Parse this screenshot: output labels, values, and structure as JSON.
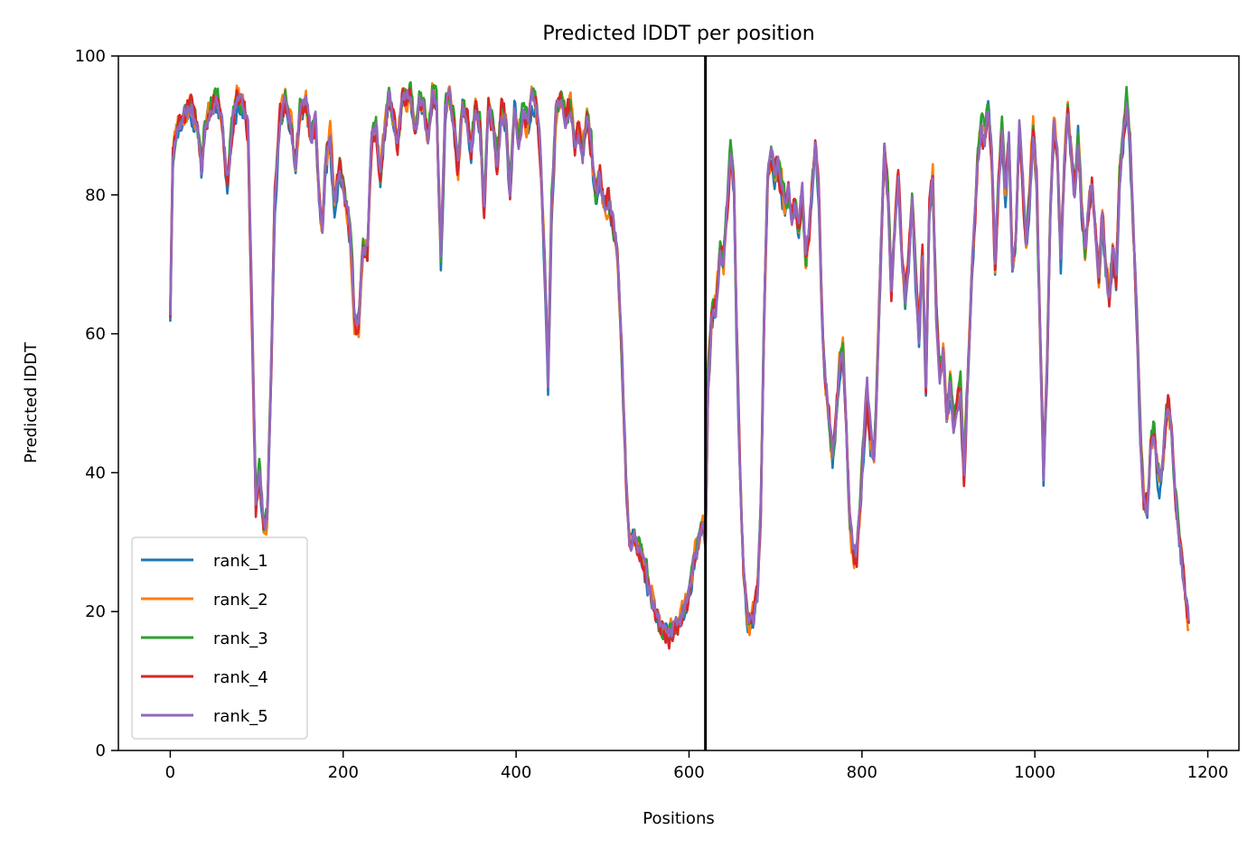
{
  "chart_data": {
    "type": "line",
    "title": "Predicted lDDT per position",
    "xlabel": "Positions",
    "ylabel": "Predicted lDDT",
    "xlim": [
      -60,
      1236
    ],
    "ylim": [
      0,
      100
    ],
    "xticks": [
      0,
      200,
      400,
      600,
      800,
      1000,
      1200
    ],
    "yticks": [
      0,
      20,
      40,
      60,
      80,
      100
    ],
    "grid": false,
    "legend_position": "lower-left",
    "vline_x": 619,
    "base_profile": [
      [
        0,
        63
      ],
      [
        3,
        86
      ],
      [
        8,
        90
      ],
      [
        15,
        91
      ],
      [
        22,
        93
      ],
      [
        28,
        91
      ],
      [
        33,
        88
      ],
      [
        36,
        84
      ],
      [
        40,
        90
      ],
      [
        48,
        93
      ],
      [
        55,
        94
      ],
      [
        60,
        91
      ],
      [
        66,
        82
      ],
      [
        72,
        90
      ],
      [
        78,
        94
      ],
      [
        85,
        92
      ],
      [
        90,
        89
      ],
      [
        95,
        60
      ],
      [
        99,
        35
      ],
      [
        103,
        40
      ],
      [
        108,
        32
      ],
      [
        112,
        33
      ],
      [
        116,
        50
      ],
      [
        121,
        80
      ],
      [
        127,
        91
      ],
      [
        133,
        93
      ],
      [
        140,
        90
      ],
      [
        145,
        84
      ],
      [
        150,
        92
      ],
      [
        157,
        93
      ],
      [
        163,
        88
      ],
      [
        168,
        90
      ],
      [
        172,
        80
      ],
      [
        176,
        75
      ],
      [
        180,
        85
      ],
      [
        185,
        88
      ],
      [
        190,
        79
      ],
      [
        196,
        84
      ],
      [
        202,
        80
      ],
      [
        208,
        75
      ],
      [
        213,
        62
      ],
      [
        218,
        61
      ],
      [
        223,
        73
      ],
      [
        228,
        72
      ],
      [
        233,
        88
      ],
      [
        238,
        90
      ],
      [
        243,
        82
      ],
      [
        248,
        89
      ],
      [
        253,
        94
      ],
      [
        258,
        91
      ],
      [
        263,
        87
      ],
      [
        268,
        94
      ],
      [
        273,
        93
      ],
      [
        278,
        94
      ],
      [
        283,
        89
      ],
      [
        288,
        93
      ],
      [
        293,
        93
      ],
      [
        298,
        88
      ],
      [
        303,
        95
      ],
      [
        308,
        93
      ],
      [
        313,
        70
      ],
      [
        318,
        92
      ],
      [
        323,
        94
      ],
      [
        328,
        91
      ],
      [
        333,
        84
      ],
      [
        338,
        93
      ],
      [
        343,
        91
      ],
      [
        348,
        86
      ],
      [
        353,
        93
      ],
      [
        358,
        90
      ],
      [
        363,
        78
      ],
      [
        368,
        93
      ],
      [
        373,
        90
      ],
      [
        378,
        84
      ],
      [
        383,
        92
      ],
      [
        388,
        91
      ],
      [
        393,
        80
      ],
      [
        398,
        93
      ],
      [
        403,
        88
      ],
      [
        408,
        92
      ],
      [
        413,
        90
      ],
      [
        418,
        94
      ],
      [
        423,
        93
      ],
      [
        428,
        86
      ],
      [
        433,
        70
      ],
      [
        437,
        53
      ],
      [
        441,
        78
      ],
      [
        446,
        92
      ],
      [
        452,
        94
      ],
      [
        458,
        91
      ],
      [
        463,
        93
      ],
      [
        468,
        87
      ],
      [
        472,
        90
      ],
      [
        477,
        86
      ],
      [
        482,
        90
      ],
      [
        487,
        87
      ],
      [
        492,
        80
      ],
      [
        497,
        83
      ],
      [
        502,
        78
      ],
      [
        507,
        79
      ],
      [
        512,
        76
      ],
      [
        517,
        72
      ],
      [
        522,
        58
      ],
      [
        527,
        40
      ],
      [
        531,
        30
      ],
      [
        536,
        31
      ],
      [
        541,
        29
      ],
      [
        546,
        27
      ],
      [
        551,
        25
      ],
      [
        556,
        22
      ],
      [
        561,
        20
      ],
      [
        566,
        18
      ],
      [
        571,
        17
      ],
      [
        576,
        16
      ],
      [
        581,
        17
      ],
      [
        586,
        18
      ],
      [
        591,
        19
      ],
      [
        596,
        21
      ],
      [
        601,
        23
      ],
      [
        606,
        27
      ],
      [
        611,
        30
      ],
      [
        616,
        32
      ],
      [
        619,
        30
      ],
      [
        622,
        52
      ],
      [
        626,
        62
      ],
      [
        631,
        64
      ],
      [
        636,
        72
      ],
      [
        640,
        70
      ],
      [
        644,
        78
      ],
      [
        648,
        86
      ],
      [
        652,
        80
      ],
      [
        655,
        60
      ],
      [
        659,
        40
      ],
      [
        663,
        26
      ],
      [
        667,
        20
      ],
      [
        671,
        18
      ],
      [
        675,
        19
      ],
      [
        679,
        22
      ],
      [
        683,
        35
      ],
      [
        687,
        63
      ],
      [
        691,
        82
      ],
      [
        695,
        85
      ],
      [
        699,
        82
      ],
      [
        703,
        84
      ],
      [
        707,
        81
      ],
      [
        711,
        78
      ],
      [
        715,
        80
      ],
      [
        719,
        76
      ],
      [
        723,
        79
      ],
      [
        727,
        75
      ],
      [
        731,
        80
      ],
      [
        735,
        70
      ],
      [
        739,
        75
      ],
      [
        743,
        82
      ],
      [
        746,
        87
      ],
      [
        750,
        80
      ],
      [
        754,
        62
      ],
      [
        758,
        52
      ],
      [
        762,
        48
      ],
      [
        766,
        42
      ],
      [
        770,
        47
      ],
      [
        774,
        55
      ],
      [
        778,
        57
      ],
      [
        782,
        46
      ],
      [
        786,
        33
      ],
      [
        790,
        28
      ],
      [
        794,
        28
      ],
      [
        798,
        35
      ],
      [
        802,
        44
      ],
      [
        806,
        52
      ],
      [
        810,
        45
      ],
      [
        814,
        42
      ],
      [
        818,
        55
      ],
      [
        822,
        72
      ],
      [
        826,
        86
      ],
      [
        830,
        80
      ],
      [
        834,
        66
      ],
      [
        838,
        75
      ],
      [
        842,
        83
      ],
      [
        846,
        72
      ],
      [
        850,
        65
      ],
      [
        854,
        70
      ],
      [
        858,
        79
      ],
      [
        862,
        68
      ],
      [
        866,
        60
      ],
      [
        870,
        72
      ],
      [
        874,
        53
      ],
      [
        878,
        78
      ],
      [
        882,
        82
      ],
      [
        886,
        63
      ],
      [
        890,
        55
      ],
      [
        894,
        57
      ],
      [
        898,
        48
      ],
      [
        902,
        53
      ],
      [
        906,
        46
      ],
      [
        910,
        50
      ],
      [
        914,
        52
      ],
      [
        918,
        40
      ],
      [
        922,
        52
      ],
      [
        926,
        65
      ],
      [
        930,
        75
      ],
      [
        934,
        85
      ],
      [
        938,
        90
      ],
      [
        942,
        88
      ],
      [
        946,
        92
      ],
      [
        950,
        86
      ],
      [
        954,
        70
      ],
      [
        958,
        82
      ],
      [
        962,
        89
      ],
      [
        966,
        80
      ],
      [
        970,
        88
      ],
      [
        974,
        70
      ],
      [
        978,
        74
      ],
      [
        982,
        89
      ],
      [
        986,
        82
      ],
      [
        990,
        72
      ],
      [
        994,
        80
      ],
      [
        998,
        90
      ],
      [
        1002,
        82
      ],
      [
        1006,
        60
      ],
      [
        1010,
        40
      ],
      [
        1014,
        55
      ],
      [
        1018,
        78
      ],
      [
        1022,
        91
      ],
      [
        1026,
        86
      ],
      [
        1030,
        70
      ],
      [
        1034,
        84
      ],
      [
        1038,
        92
      ],
      [
        1042,
        86
      ],
      [
        1046,
        80
      ],
      [
        1050,
        88
      ],
      [
        1054,
        78
      ],
      [
        1058,
        72
      ],
      [
        1062,
        78
      ],
      [
        1066,
        82
      ],
      [
        1070,
        75
      ],
      [
        1074,
        68
      ],
      [
        1078,
        78
      ],
      [
        1082,
        70
      ],
      [
        1086,
        65
      ],
      [
        1090,
        72
      ],
      [
        1094,
        68
      ],
      [
        1098,
        82
      ],
      [
        1102,
        88
      ],
      [
        1106,
        93
      ],
      [
        1110,
        88
      ],
      [
        1114,
        75
      ],
      [
        1118,
        62
      ],
      [
        1122,
        45
      ],
      [
        1126,
        36
      ],
      [
        1130,
        35
      ],
      [
        1134,
        44
      ],
      [
        1138,
        46
      ],
      [
        1142,
        40
      ],
      [
        1146,
        38
      ],
      [
        1150,
        45
      ],
      [
        1154,
        50
      ],
      [
        1158,
        46
      ],
      [
        1162,
        38
      ],
      [
        1166,
        32
      ],
      [
        1170,
        27
      ],
      [
        1174,
        22
      ],
      [
        1178,
        18
      ]
    ],
    "series": [
      {
        "name": "rank_1",
        "color": "#1f77b4",
        "offset": -0.6,
        "noise": 1.6,
        "seed": 11
      },
      {
        "name": "rank_2",
        "color": "#ff7f0e",
        "offset": 0.3,
        "noise": 1.8,
        "seed": 23
      },
      {
        "name": "rank_3",
        "color": "#2ca02c",
        "offset": 0.5,
        "noise": 1.6,
        "seed": 37
      },
      {
        "name": "rank_4",
        "color": "#d62728",
        "offset": 0.0,
        "noise": 1.7,
        "seed": 51
      },
      {
        "name": "rank_5",
        "color": "#9467bd",
        "offset": 0.2,
        "noise": 1.4,
        "seed": 67
      }
    ]
  }
}
